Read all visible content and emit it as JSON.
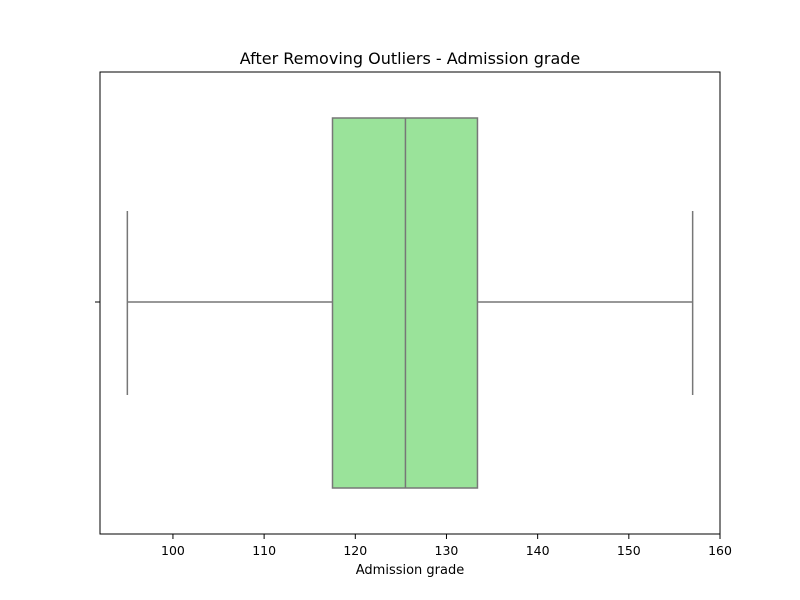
{
  "chart_data": {
    "type": "box",
    "title": "After Removing Outliers - Admission grade",
    "xlabel": "Admission grade",
    "ylabel": "",
    "orientation": "horizontal",
    "xlim": [
      92,
      160
    ],
    "xticks": [
      100,
      110,
      120,
      130,
      140,
      150,
      160
    ],
    "box": {
      "whisker_low": 95,
      "q1": 117.5,
      "median": 125.5,
      "q3": 133.4,
      "whisker_high": 157
    },
    "colors": {
      "box_fill": "#9ae39a",
      "line": "#777777",
      "axes": "#000000"
    },
    "grid": false,
    "legend": "none"
  }
}
